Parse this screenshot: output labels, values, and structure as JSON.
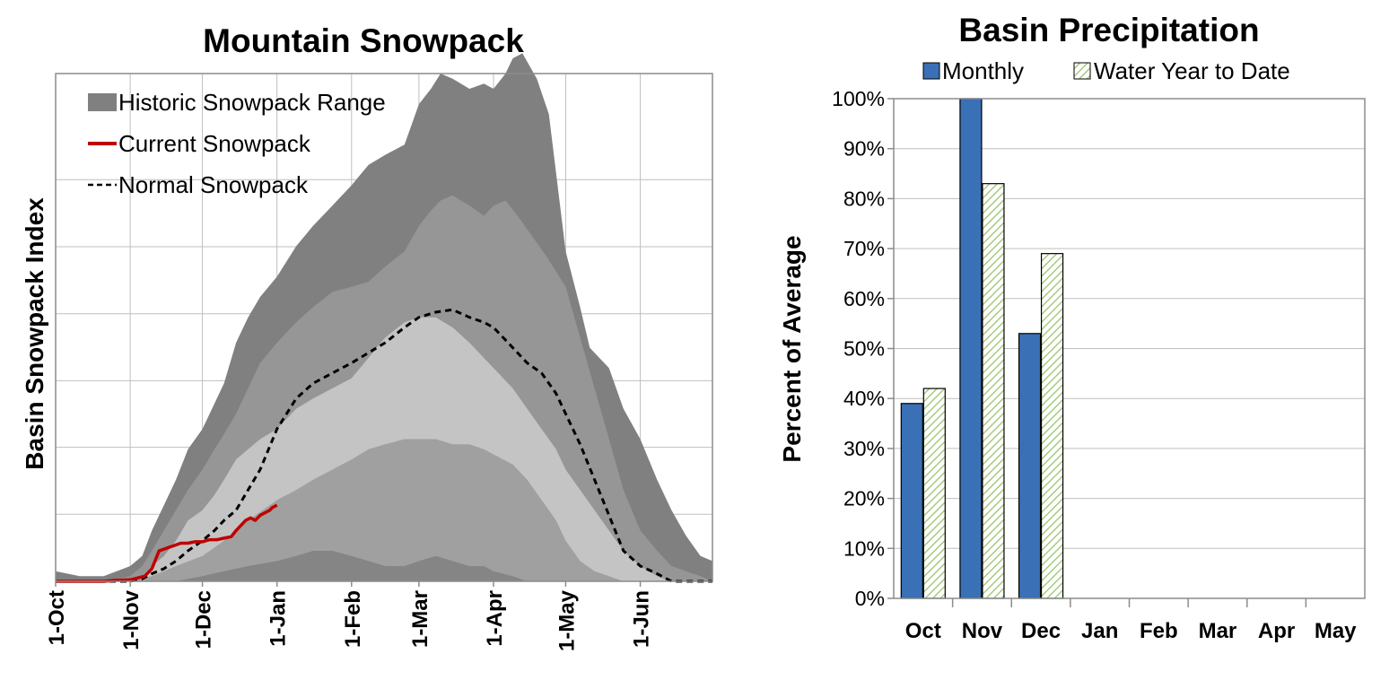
{
  "chart_data": [
    {
      "type": "area",
      "title": "Mountain Snowpack",
      "ylabel": "Basin Snowpack Index",
      "xlabel": "",
      "x_ticks": [
        "1-Oct",
        "1-Nov",
        "1-Dec",
        "1-Jan",
        "1-Feb",
        "1-Mar",
        "1-Apr",
        "1-May",
        "1-Jun"
      ],
      "x_tick_days": [
        0,
        31,
        61,
        92,
        123,
        151,
        182,
        212,
        243
      ],
      "x_range": [
        0,
        273
      ],
      "ylim": [
        0,
        100
      ],
      "y_grid_lines": [
        13.2,
        26.4,
        39.5,
        52.7,
        65.9,
        79.1
      ],
      "legend": {
        "historic": "Historic Snowpack Range",
        "current": "Current Snowpack",
        "normal": "Normal Snowpack"
      },
      "colors": {
        "band_max": "#808080",
        "band_high": "#969696",
        "band_mid": "#c4c4c4",
        "band_low": "#a0a0a0",
        "band_min": "#858585",
        "current": "#c00000",
        "normal": "#000000"
      },
      "series": [
        {
          "name": "Max",
          "x": [
            0,
            10,
            20,
            31,
            36,
            40,
            45,
            50,
            55,
            61,
            66,
            70,
            75,
            80,
            85,
            92,
            100,
            107,
            115,
            123,
            130,
            137,
            145,
            151,
            156,
            160,
            165,
            172,
            178,
            182,
            187,
            190,
            194,
            200,
            205,
            212,
            218,
            222,
            230,
            236,
            243,
            250,
            256,
            262,
            268,
            273
          ],
          "y": [
            2,
            1,
            1,
            3,
            5,
            10,
            15,
            20,
            26,
            30,
            35,
            39,
            47,
            52,
            56,
            60,
            66,
            70,
            74,
            78,
            82,
            84,
            86,
            94,
            97,
            100,
            99,
            97,
            98,
            97,
            100,
            103,
            104,
            99,
            92,
            65,
            54,
            46,
            42,
            34,
            28,
            20,
            14,
            9,
            5,
            4
          ]
        },
        {
          "name": "High",
          "x": [
            0,
            20,
            31,
            36,
            40,
            45,
            50,
            55,
            61,
            66,
            70,
            75,
            80,
            85,
            92,
            100,
            107,
            115,
            123,
            130,
            137,
            145,
            151,
            156,
            160,
            165,
            172,
            178,
            182,
            187,
            192,
            198,
            204,
            212,
            218,
            224,
            230,
            236,
            243,
            250,
            256,
            262,
            268,
            273
          ],
          "y": [
            0,
            0,
            1,
            3,
            6,
            10,
            14,
            18,
            22,
            26,
            29,
            33,
            38,
            43,
            47,
            51,
            54,
            57,
            58,
            59,
            62,
            65,
            70,
            73,
            75,
            76,
            74,
            72,
            74,
            75,
            72,
            68,
            64,
            58,
            48,
            38,
            28,
            18,
            10,
            6,
            3,
            2,
            1,
            0
          ]
        },
        {
          "name": "Mid",
          "x": [
            0,
            31,
            36,
            40,
            45,
            50,
            55,
            61,
            66,
            70,
            75,
            80,
            85,
            92,
            100,
            107,
            115,
            123,
            130,
            137,
            145,
            151,
            158,
            165,
            172,
            178,
            182,
            190,
            196,
            202,
            208,
            212,
            218,
            224,
            230,
            236,
            243,
            250,
            256,
            262,
            268,
            273
          ],
          "y": [
            0,
            0,
            1,
            3,
            5,
            8,
            12,
            14,
            17,
            20,
            24,
            26,
            28,
            30,
            34,
            36,
            38,
            40,
            44,
            48,
            51,
            52,
            52,
            50,
            47,
            44,
            42,
            38,
            34,
            30,
            26,
            22,
            18,
            14,
            10,
            6,
            3,
            1,
            0,
            0,
            0,
            0
          ]
        },
        {
          "name": "Low",
          "x": [
            0,
            31,
            40,
            50,
            61,
            70,
            80,
            92,
            100,
            107,
            115,
            123,
            130,
            137,
            145,
            151,
            158,
            165,
            172,
            178,
            182,
            190,
            196,
            202,
            208,
            212,
            218,
            224,
            230,
            236,
            243,
            250,
            256,
            262,
            268,
            273
          ],
          "y": [
            0,
            0,
            1,
            3,
            5,
            8,
            12,
            16,
            18,
            20,
            22,
            24,
            26,
            27,
            28,
            28,
            28,
            27,
            27,
            26,
            25,
            23,
            20,
            16,
            12,
            8,
            4,
            2,
            1,
            0,
            0,
            0,
            0,
            0,
            0,
            0
          ]
        },
        {
          "name": "Min",
          "x": [
            0,
            31,
            40,
            50,
            61,
            70,
            80,
            92,
            100,
            107,
            115,
            123,
            130,
            137,
            145,
            151,
            158,
            165,
            172,
            178,
            182,
            190,
            196,
            202,
            208,
            212,
            218,
            224,
            273
          ],
          "y": [
            0,
            0,
            0,
            0,
            1,
            2,
            3,
            4,
            5,
            6,
            6,
            5,
            4,
            3,
            3,
            4,
            5,
            4,
            3,
            3,
            2,
            1,
            0,
            0,
            0,
            0,
            0,
            0,
            0
          ]
        },
        {
          "name": "Current Snowpack",
          "x": [
            0,
            10,
            20,
            25,
            31,
            37,
            40,
            43,
            46,
            49,
            52,
            55,
            58,
            61,
            64,
            67,
            70,
            73,
            75,
            77,
            79,
            81,
            83,
            85,
            87,
            89,
            90,
            92
          ],
          "y": [
            0,
            0,
            0,
            0.2,
            0.3,
            1,
            2.5,
            6,
            6.5,
            7,
            7.5,
            7.5,
            7.8,
            7.8,
            8.2,
            8.2,
            8.5,
            8.8,
            10,
            11,
            12,
            12.5,
            12,
            13,
            13.5,
            14,
            14.5,
            15
          ]
        },
        {
          "name": "Normal Snowpack",
          "x": [
            0,
            31,
            36,
            40,
            45,
            50,
            55,
            61,
            66,
            70,
            75,
            80,
            85,
            92,
            100,
            107,
            115,
            123,
            130,
            137,
            145,
            151,
            158,
            165,
            172,
            178,
            182,
            190,
            196,
            202,
            208,
            212,
            218,
            224,
            230,
            236,
            243,
            250,
            256,
            262,
            268,
            273
          ],
          "y": [
            0,
            0,
            0.5,
            1.5,
            2.5,
            4,
            6,
            8,
            10,
            12,
            14,
            18,
            22,
            30,
            36,
            39,
            41,
            43,
            45,
            47,
            50,
            52,
            53,
            53.5,
            52,
            51,
            50,
            46,
            43,
            41,
            37,
            33,
            27,
            20,
            13,
            6,
            3,
            1.5,
            0,
            0,
            0,
            0
          ]
        }
      ]
    },
    {
      "type": "bar",
      "title": "Basin Precipitation",
      "ylabel": "Percent of Average",
      "xlabel": "",
      "categories": [
        "Oct",
        "Nov",
        "Dec",
        "Jan",
        "Feb",
        "Mar",
        "Apr",
        "May"
      ],
      "ylim": [
        0,
        100
      ],
      "y_ticks": [
        "0%",
        "10%",
        "20%",
        "30%",
        "40%",
        "50%",
        "60%",
        "70%",
        "80%",
        "90%",
        "100%"
      ],
      "grid": true,
      "legend": "top",
      "series": [
        {
          "name": "Monthly",
          "color": "#3a70b5",
          "values": [
            39,
            100,
            53,
            null,
            null,
            null,
            null,
            null
          ]
        },
        {
          "name": "Water Year to Date",
          "color": "#9bc46b",
          "values": [
            42,
            83,
            69,
            null,
            null,
            null,
            null,
            null
          ]
        }
      ]
    }
  ]
}
